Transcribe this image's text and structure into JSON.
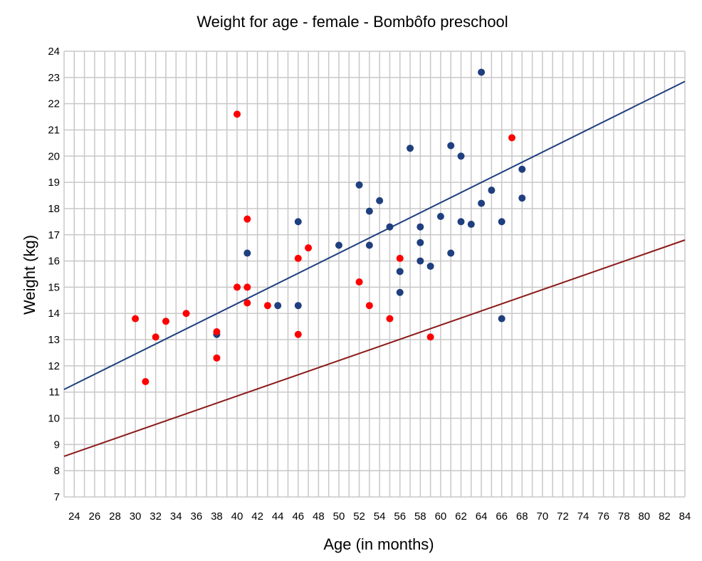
{
  "chart_data": {
    "type": "scatter",
    "title": "Weight for age - female - Bombôfo preschool",
    "xlabel": "Age (in months)",
    "ylabel": "Weight (kg)",
    "xlim": [
      23,
      84
    ],
    "ylim": [
      7,
      24
    ],
    "x_ticks": [
      "24",
      "26",
      "28",
      "30",
      "32",
      "34",
      "36",
      "38",
      "40",
      "42",
      "44",
      "46",
      "48",
      "50",
      "52",
      "54",
      "56",
      "58",
      "60",
      "62",
      "64",
      "66",
      "68",
      "70",
      "72",
      "74",
      "76",
      "78",
      "80",
      "82",
      "84"
    ],
    "y_ticks": [
      "7",
      "8",
      "9",
      "10",
      "11",
      "12",
      "13",
      "14",
      "15",
      "16",
      "17",
      "18",
      "19",
      "20",
      "21",
      "22",
      "23",
      "24"
    ],
    "grid": true,
    "legend": "none",
    "series": [
      {
        "color": "#1f3f7f",
        "points": [
          {
            "x": 38,
            "y": 13.2
          },
          {
            "x": 41,
            "y": 16.3
          },
          {
            "x": 44,
            "y": 14.3
          },
          {
            "x": 46,
            "y": 17.5
          },
          {
            "x": 46,
            "y": 14.3
          },
          {
            "x": 50,
            "y": 16.6
          },
          {
            "x": 52,
            "y": 18.9
          },
          {
            "x": 53,
            "y": 17.9
          },
          {
            "x": 53,
            "y": 16.6
          },
          {
            "x": 54,
            "y": 18.3
          },
          {
            "x": 55,
            "y": 17.3
          },
          {
            "x": 56,
            "y": 15.6
          },
          {
            "x": 56,
            "y": 14.8
          },
          {
            "x": 57,
            "y": 20.3
          },
          {
            "x": 58,
            "y": 17.3
          },
          {
            "x": 58,
            "y": 16.7
          },
          {
            "x": 58,
            "y": 16.0
          },
          {
            "x": 59,
            "y": 15.8
          },
          {
            "x": 60,
            "y": 17.7
          },
          {
            "x": 61,
            "y": 20.4
          },
          {
            "x": 61,
            "y": 16.3
          },
          {
            "x": 62,
            "y": 20.0
          },
          {
            "x": 62,
            "y": 17.5
          },
          {
            "x": 63,
            "y": 17.4
          },
          {
            "x": 64,
            "y": 23.2
          },
          {
            "x": 64,
            "y": 18.2
          },
          {
            "x": 65,
            "y": 18.7
          },
          {
            "x": 66,
            "y": 17.5
          },
          {
            "x": 66,
            "y": 13.8
          },
          {
            "x": 68,
            "y": 19.5
          },
          {
            "x": 68,
            "y": 18.4
          }
        ]
      },
      {
        "color": "#ff0000",
        "points": [
          {
            "x": 30,
            "y": 13.8
          },
          {
            "x": 31,
            "y": 11.4
          },
          {
            "x": 32,
            "y": 13.1
          },
          {
            "x": 33,
            "y": 13.7
          },
          {
            "x": 35,
            "y": 14.0
          },
          {
            "x": 38,
            "y": 13.3
          },
          {
            "x": 38,
            "y": 12.3
          },
          {
            "x": 40,
            "y": 21.6
          },
          {
            "x": 40,
            "y": 15.0
          },
          {
            "x": 41,
            "y": 17.6
          },
          {
            "x": 41,
            "y": 15.0
          },
          {
            "x": 41,
            "y": 14.4
          },
          {
            "x": 43,
            "y": 14.3
          },
          {
            "x": 46,
            "y": 16.1
          },
          {
            "x": 46,
            "y": 13.2
          },
          {
            "x": 47,
            "y": 16.5
          },
          {
            "x": 52,
            "y": 15.2
          },
          {
            "x": 53,
            "y": 14.3
          },
          {
            "x": 55,
            "y": 13.8
          },
          {
            "x": 56,
            "y": 16.1
          },
          {
            "x": 59,
            "y": 13.1
          },
          {
            "x": 67,
            "y": 20.7
          }
        ]
      }
    ],
    "lines": [
      {
        "color": "#1f3f7f",
        "from": {
          "x": 23,
          "y": 11.1
        },
        "to": {
          "x": 84,
          "y": 22.85
        }
      },
      {
        "color": "#8b1a1a",
        "from": {
          "x": 23,
          "y": 8.55
        },
        "to": {
          "x": 84,
          "y": 16.8
        }
      }
    ]
  }
}
